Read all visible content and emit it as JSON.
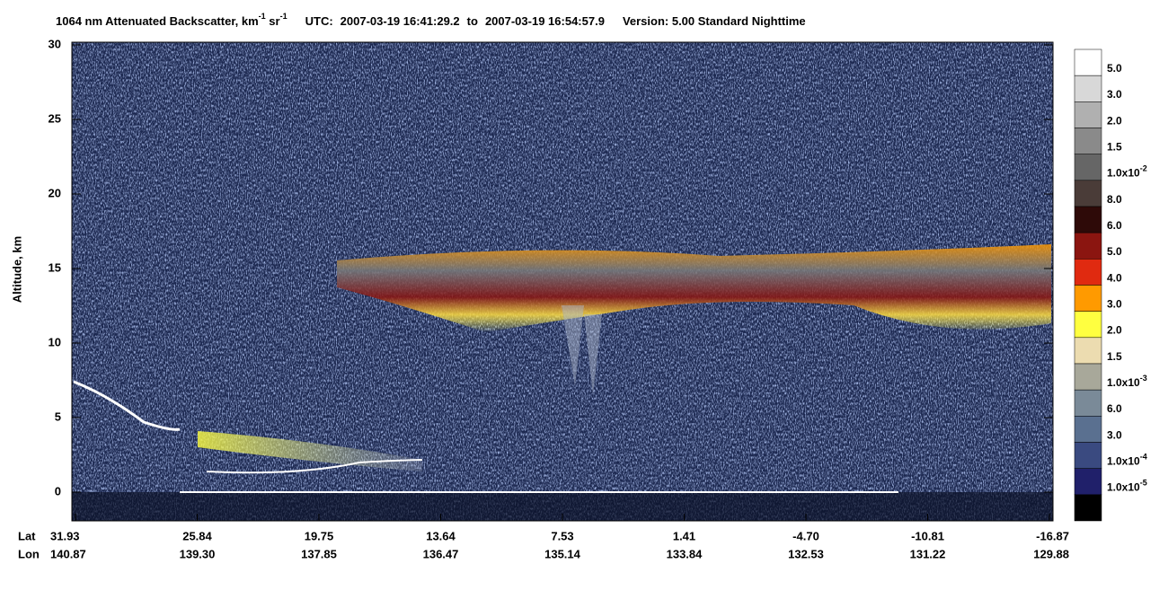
{
  "title": {
    "product": "1064 nm Attenuated Backscatter, km",
    "unit_exp_1": "-1",
    "unit_sr": " sr",
    "unit_exp_2": "-1",
    "utc_label": "UTC:",
    "start": "2007-03-19 16:41:29.2",
    "to": "to",
    "end": "2007-03-19 16:54:57.9",
    "version": "Version: 5.00  Standard  Nighttime"
  },
  "y_axis": {
    "label": "Altitude, km",
    "ticks": [
      "30",
      "25",
      "20",
      "15",
      "10",
      "5",
      "0"
    ]
  },
  "x_axis": {
    "lat_label": "Lat",
    "lon_label": "Lon",
    "lat": [
      "31.93",
      "25.84",
      "19.75",
      "13.64",
      "7.53",
      "1.41",
      "-4.70",
      "-10.81",
      "-16.87"
    ],
    "lon": [
      "140.87",
      "139.30",
      "137.85",
      "136.47",
      "135.14",
      "133.84",
      "132.53",
      "131.22",
      "129.88"
    ]
  },
  "colorbar": {
    "labels": [
      {
        "base": "5.0"
      },
      {
        "base": "3.0"
      },
      {
        "base": "2.0"
      },
      {
        "base": "1.5"
      },
      {
        "base": "1.0x10",
        "exp": "-2"
      },
      {
        "base": "8.0"
      },
      {
        "base": "6.0"
      },
      {
        "base": "5.0"
      },
      {
        "base": "4.0"
      },
      {
        "base": "3.0"
      },
      {
        "base": "2.0"
      },
      {
        "base": "1.5"
      },
      {
        "base": "1.0x10",
        "exp": "-3"
      },
      {
        "base": "6.0"
      },
      {
        "base": "3.0"
      },
      {
        "base": "1.0x10",
        "exp": "-4"
      },
      {
        "base": "1.0x10",
        "exp": "-5"
      }
    ]
  }
}
